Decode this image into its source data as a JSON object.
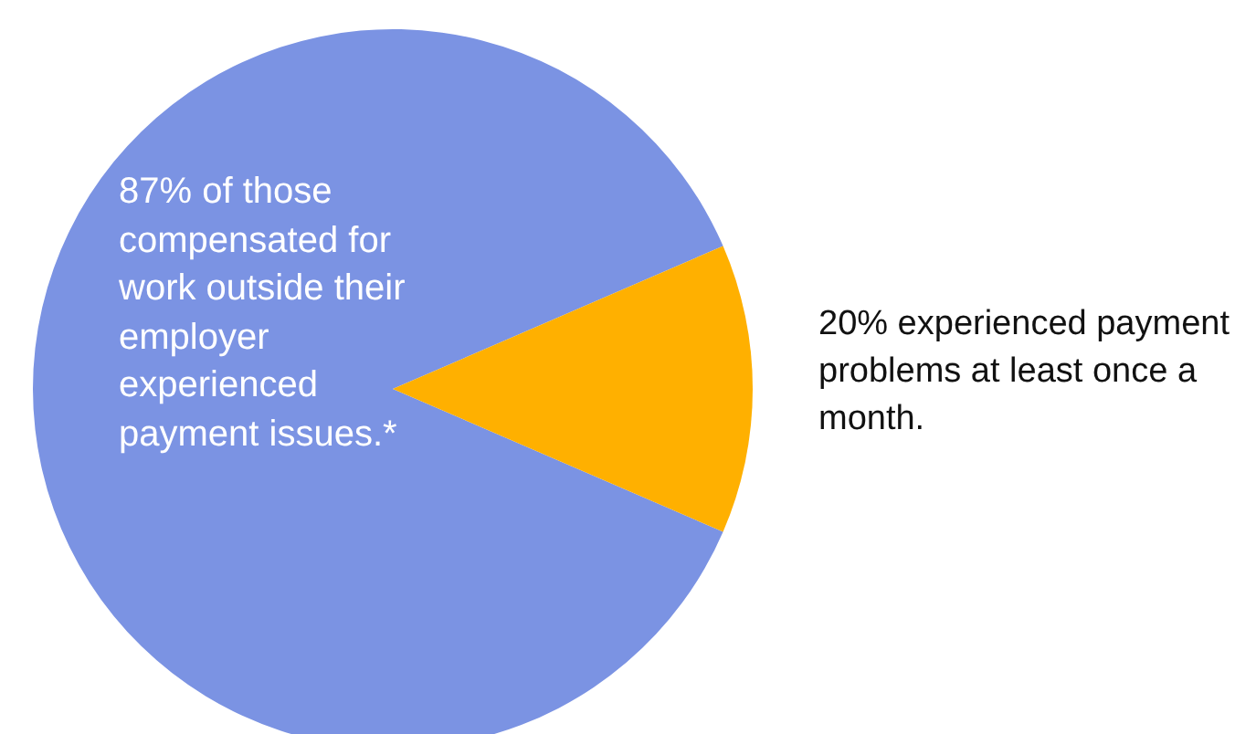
{
  "chart_data": {
    "type": "pie",
    "categories": [
      null,
      null
    ],
    "values": [
      87,
      13
    ],
    "colors": [
      "#7b93e3",
      "#ffb000"
    ],
    "annotations": [
      "87% of those compensated for work outside their employer experienced payment issues.*",
      "20% experienced payment problems at least once a month."
    ]
  }
}
